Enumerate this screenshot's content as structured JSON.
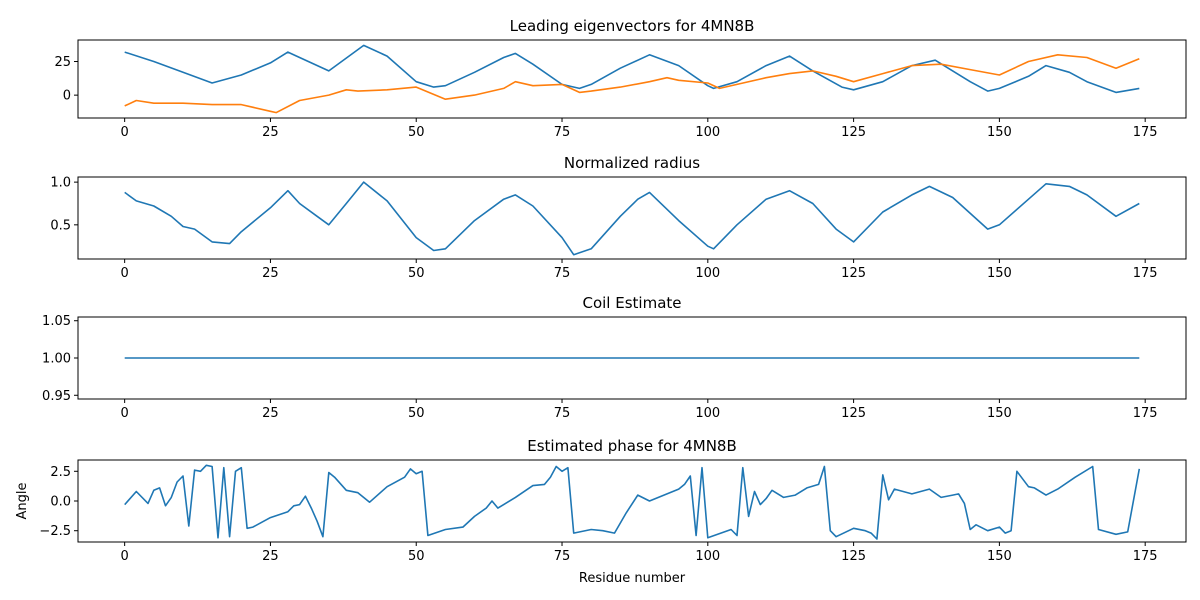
{
  "chart_data": [
    {
      "type": "line",
      "title": "Leading eigenvectors for 4MN8B",
      "xlabel": "",
      "ylabel": "",
      "xlim": [
        -8,
        182
      ],
      "ylim": [
        -17,
        41
      ],
      "xticks": [
        0,
        25,
        50,
        75,
        100,
        125,
        150,
        175
      ],
      "yticks": [
        0,
        25
      ],
      "grid": false,
      "series": [
        {
          "color": "#1f77b4",
          "x": [
            0,
            5,
            10,
            15,
            20,
            25,
            28,
            30,
            35,
            41,
            45,
            50,
            53,
            55,
            60,
            65,
            67,
            70,
            75,
            78,
            80,
            85,
            90,
            95,
            100,
            101,
            105,
            110,
            114,
            118,
            123,
            125,
            130,
            135,
            139,
            145,
            148,
            150,
            155,
            158,
            162,
            165,
            170,
            174
          ],
          "values": [
            32,
            25,
            17,
            9,
            15,
            24,
            32,
            28,
            18,
            37,
            29,
            10,
            6,
            7,
            17,
            28,
            31,
            23,
            8,
            5,
            8,
            20,
            30,
            22,
            7,
            5,
            10,
            22,
            29,
            18,
            6,
            4,
            10,
            22,
            26,
            10,
            3,
            5,
            14,
            22,
            17,
            10,
            2,
            5
          ]
        },
        {
          "color": "#ff7f0e",
          "x": [
            0,
            2,
            5,
            10,
            15,
            20,
            25,
            26,
            30,
            35,
            38,
            40,
            45,
            50,
            55,
            60,
            65,
            67,
            70,
            75,
            78,
            80,
            85,
            90,
            93,
            95,
            100,
            102,
            105,
            110,
            114,
            118,
            122,
            125,
            130,
            135,
            140,
            145,
            150,
            155,
            160,
            165,
            170,
            174
          ],
          "values": [
            -8,
            -4,
            -6,
            -6,
            -7,
            -7,
            -12,
            -13,
            -4,
            0,
            4,
            3,
            4,
            6,
            -3,
            0,
            5,
            10,
            7,
            8,
            2,
            3,
            6,
            10,
            13,
            11,
            9,
            5,
            8,
            13,
            16,
            18,
            14,
            10,
            16,
            22,
            23,
            19,
            15,
            25,
            30,
            28,
            20,
            27
          ]
        }
      ]
    },
    {
      "type": "line",
      "title": "Normalized radius",
      "xlabel": "",
      "ylabel": "",
      "xlim": [
        -8,
        182
      ],
      "ylim": [
        0.1,
        1.06
      ],
      "xticks": [
        0,
        25,
        50,
        75,
        100,
        125,
        150,
        175
      ],
      "yticks": [
        0.5,
        1.0
      ],
      "ytick_labels": [
        "0.5",
        "1.0"
      ],
      "grid": false,
      "series": [
        {
          "color": "#1f77b4",
          "x": [
            0,
            2,
            5,
            8,
            10,
            12,
            15,
            18,
            20,
            25,
            28,
            30,
            33,
            35,
            38,
            41,
            45,
            50,
            53,
            55,
            60,
            65,
            67,
            70,
            75,
            77,
            80,
            85,
            88,
            90,
            95,
            100,
            101,
            105,
            110,
            114,
            118,
            122,
            125,
            130,
            135,
            138,
            142,
            148,
            150,
            155,
            158,
            162,
            165,
            170,
            174
          ],
          "values": [
            0.88,
            0.78,
            0.72,
            0.6,
            0.48,
            0.45,
            0.3,
            0.28,
            0.42,
            0.7,
            0.9,
            0.75,
            0.6,
            0.5,
            0.75,
            1.0,
            0.78,
            0.35,
            0.2,
            0.22,
            0.55,
            0.8,
            0.85,
            0.72,
            0.35,
            0.15,
            0.22,
            0.6,
            0.8,
            0.88,
            0.55,
            0.25,
            0.22,
            0.5,
            0.8,
            0.9,
            0.75,
            0.45,
            0.3,
            0.65,
            0.85,
            0.95,
            0.82,
            0.45,
            0.5,
            0.8,
            0.98,
            0.95,
            0.85,
            0.6,
            0.75
          ]
        }
      ]
    },
    {
      "type": "line",
      "title": "Coil Estimate",
      "xlabel": "",
      "ylabel": "",
      "xlim": [
        -8,
        182
      ],
      "ylim": [
        0.945,
        1.055
      ],
      "xticks": [
        0,
        25,
        50,
        75,
        100,
        125,
        150,
        175
      ],
      "yticks": [
        0.95,
        1.0,
        1.05
      ],
      "ytick_labels": [
        "0.95",
        "1.00",
        "1.05"
      ],
      "grid": false,
      "series": [
        {
          "color": "#1f77b4",
          "x": [
            0,
            174
          ],
          "values": [
            1.0,
            1.0
          ]
        }
      ]
    },
    {
      "type": "line",
      "title": "Estimated phase for 4MN8B",
      "xlabel": "Residue number",
      "ylabel": "Angle",
      "xlim": [
        -8,
        182
      ],
      "ylim": [
        -3.45,
        3.45
      ],
      "xticks": [
        0,
        25,
        50,
        75,
        100,
        125,
        150,
        175
      ],
      "yticks": [
        -2.5,
        0.0,
        2.5
      ],
      "ytick_labels": [
        "−2.5",
        "0.0",
        "2.5"
      ],
      "grid": false,
      "series": [
        {
          "color": "#1f77b4",
          "x": [
            0,
            2,
            4,
            5,
            6,
            7,
            8,
            9,
            10,
            11,
            12,
            13,
            14,
            15,
            16,
            17,
            18,
            19,
            20,
            21,
            22,
            25,
            28,
            29,
            30,
            31,
            32,
            33,
            34,
            35,
            36,
            38,
            40,
            42,
            45,
            48,
            49,
            50,
            51,
            52,
            55,
            58,
            60,
            62,
            63,
            64,
            65,
            67,
            70,
            72,
            73,
            74,
            75,
            76,
            77,
            80,
            82,
            84,
            86,
            88,
            90,
            93,
            95,
            96,
            97,
            98,
            99,
            100,
            104,
            105,
            106,
            107,
            108,
            109,
            110,
            111,
            113,
            115,
            117,
            119,
            120,
            121,
            122,
            125,
            127,
            128,
            129,
            130,
            131,
            132,
            135,
            138,
            140,
            142,
            143,
            144,
            145,
            146,
            148,
            150,
            151,
            152,
            153,
            155,
            156,
            158,
            160,
            163,
            166,
            167,
            170,
            172,
            174
          ],
          "values": [
            -0.3,
            0.8,
            -0.2,
            0.9,
            1.1,
            -0.4,
            0.3,
            1.6,
            2.1,
            -2.1,
            2.6,
            2.5,
            3.0,
            2.9,
            -3.1,
            2.8,
            -3.0,
            2.5,
            2.8,
            -2.3,
            -2.2,
            -1.4,
            -0.9,
            -0.4,
            -0.3,
            0.4,
            -0.6,
            -1.7,
            -3.0,
            2.4,
            2.0,
            0.9,
            0.7,
            -0.1,
            1.2,
            2.0,
            2.7,
            2.3,
            2.5,
            -2.9,
            -2.4,
            -2.2,
            -1.3,
            -0.6,
            0.0,
            -0.6,
            -0.3,
            0.3,
            1.3,
            1.4,
            2.0,
            2.9,
            2.5,
            2.8,
            -2.7,
            -2.4,
            -2.5,
            -2.7,
            -1.0,
            0.5,
            0.0,
            0.6,
            1.0,
            1.4,
            2.1,
            -2.9,
            2.8,
            -3.1,
            -2.4,
            -2.9,
            2.8,
            -1.3,
            0.8,
            -0.3,
            0.2,
            0.9,
            0.3,
            0.5,
            1.1,
            1.4,
            2.9,
            -2.5,
            -3.0,
            -2.3,
            -2.5,
            -2.7,
            -3.2,
            2.2,
            0.1,
            1.0,
            0.6,
            1.0,
            0.3,
            0.5,
            0.6,
            -0.2,
            -2.4,
            -2.0,
            -2.5,
            -2.2,
            -2.7,
            -2.5,
            2.5,
            1.2,
            1.1,
            0.5,
            1.0,
            2.0,
            2.9,
            -2.4,
            -2.8,
            -2.6,
            2.7
          ]
        }
      ]
    }
  ]
}
